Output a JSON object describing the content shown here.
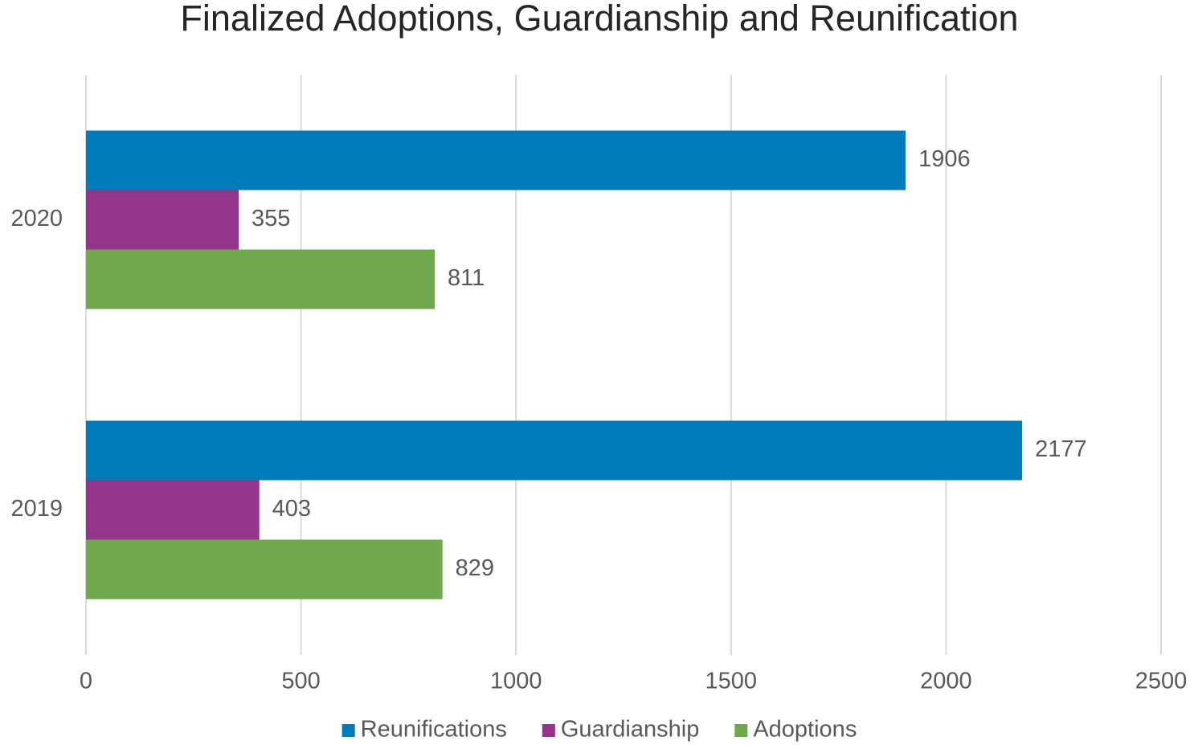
{
  "chart_data": {
    "type": "bar",
    "orientation": "horizontal",
    "title": "Finalized Adoptions, Guardianship and Reunification",
    "categories": [
      "2020",
      "2019"
    ],
    "series": [
      {
        "name": "Reunifications",
        "color": "#007bba",
        "values": [
          1906,
          2177
        ]
      },
      {
        "name": "Guardianship",
        "color": "#93358a",
        "values": [
          355,
          403
        ]
      },
      {
        "name": "Adoptions",
        "color": "#70a84d",
        "values": [
          811,
          829
        ]
      }
    ],
    "xlim": [
      0,
      2500
    ],
    "xticks": [
      0,
      500,
      1000,
      1500,
      2000,
      2500
    ],
    "grid": true,
    "legend": "bottom",
    "data_labels": true
  }
}
